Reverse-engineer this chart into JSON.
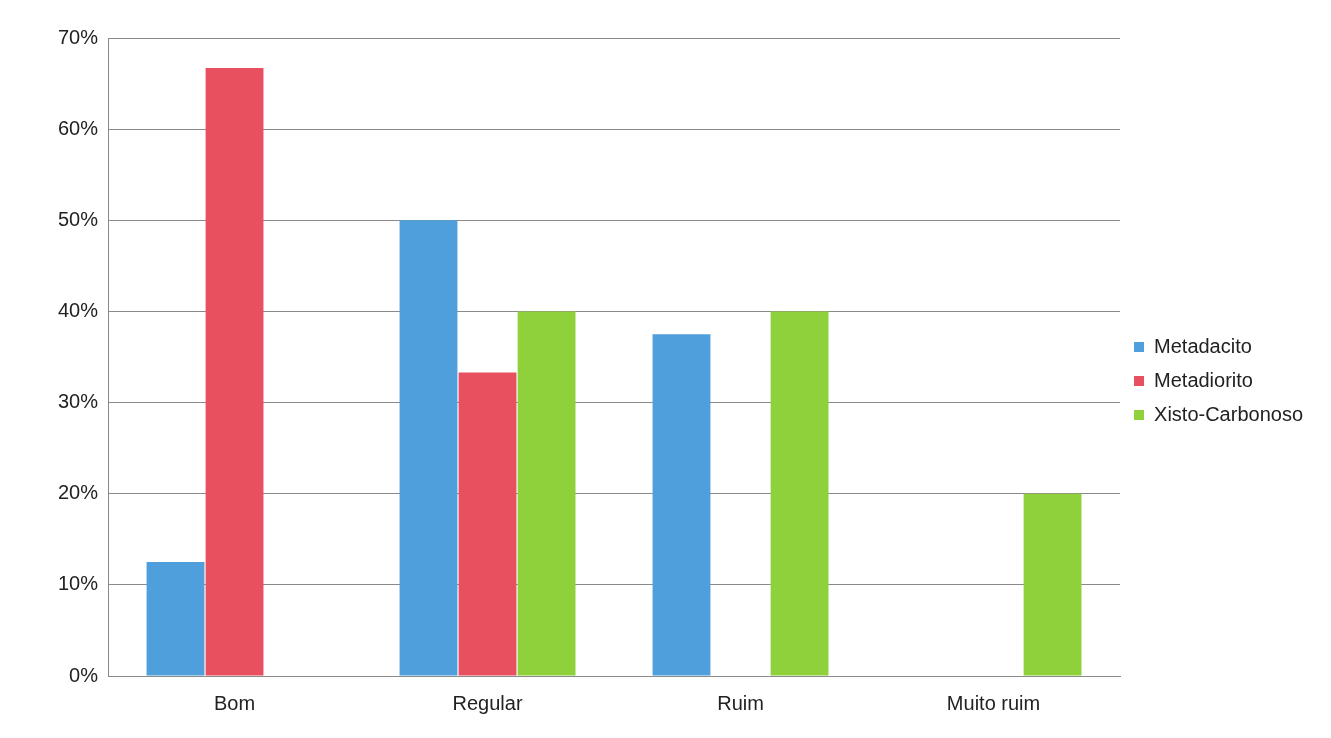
{
  "chart_data": {
    "type": "bar",
    "categories": [
      "Bom",
      "Regular",
      "Ruim",
      "Muito ruim"
    ],
    "series": [
      {
        "name": "Metadacito",
        "color": "#4f9fdc",
        "values": [
          12.5,
          50,
          37.5,
          0
        ]
      },
      {
        "name": "Metadiorito",
        "color": "#e8505f",
        "values": [
          66.7,
          33.3,
          0,
          0
        ]
      },
      {
        "name": "Xisto-Carbonoso",
        "color": "#8fd13a",
        "values": [
          0,
          40,
          40,
          20
        ]
      }
    ],
    "ylim": [
      0,
      70
    ],
    "yticks": [
      {
        "value": 0,
        "label": "0%"
      },
      {
        "value": 10,
        "label": "10%"
      },
      {
        "value": 20,
        "label": "20%"
      },
      {
        "value": 30,
        "label": "30%"
      },
      {
        "value": 40,
        "label": "40%"
      },
      {
        "value": 50,
        "label": "50%"
      },
      {
        "value": 60,
        "label": "60%"
      },
      {
        "value": 70,
        "label": "70%"
      }
    ],
    "grid": "y",
    "legend": "right"
  }
}
